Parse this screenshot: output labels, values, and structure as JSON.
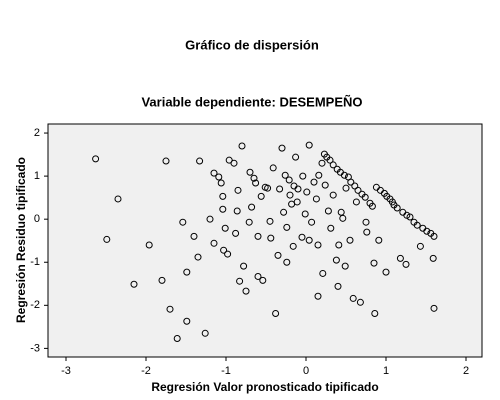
{
  "chart_data": {
    "type": "scatter",
    "title": "Gráfico de dispersión",
    "subtitle": "Variable dependiente: DESEMPEÑO",
    "x_label": "Regresión Valor pronosticado tipificado",
    "y_label": "Regresión Residuo tipificado",
    "xlim": [
      -3.225,
      2.2
    ],
    "ylim": [
      -3.2,
      2.21
    ],
    "xticks": [
      -3,
      -2,
      -1,
      0,
      1,
      2
    ],
    "yticks": [
      -3,
      -2,
      -1,
      0,
      1,
      2
    ],
    "grid": false,
    "color": "#000000",
    "background": "#f0f0f0",
    "x": [
      -2.63,
      -2.35,
      -2.49,
      -2.15,
      -1.96,
      -1.75,
      -1.8,
      -1.7,
      -1.61,
      -1.54,
      -1.49,
      -1.49,
      -1.4,
      -1.35,
      -1.33,
      -1.26,
      -1.2,
      -1.15,
      -1.15,
      -1.09,
      -1.06,
      -1.04,
      -1.04,
      -1.01,
      -1.03,
      -0.98,
      -0.96,
      -0.9,
      -0.86,
      -0.88,
      -0.85,
      -0.83,
      -0.8,
      -0.78,
      -0.75,
      -0.71,
      -0.7,
      -0.68,
      -0.65,
      -0.63,
      -0.6,
      -0.6,
      -0.56,
      -0.54,
      -0.51,
      -0.48,
      -0.45,
      -0.44,
      -0.41,
      -0.38,
      -0.35,
      -0.33,
      -0.3,
      -0.28,
      -0.26,
      -0.24,
      -0.24,
      -0.21,
      -0.2,
      -0.18,
      -0.16,
      -0.15,
      -0.13,
      -0.11,
      -0.1,
      -0.05,
      -0.04,
      -0.01,
      0.01,
      0.04,
      0.04,
      0.07,
      0.1,
      0.13,
      0.15,
      0.15,
      0.16,
      0.2,
      0.21,
      0.23,
      0.24,
      0.26,
      0.28,
      0.3,
      0.31,
      0.34,
      0.34,
      0.38,
      0.39,
      0.4,
      0.41,
      0.43,
      0.44,
      0.46,
      0.48,
      0.49,
      0.5,
      0.53,
      0.55,
      0.56,
      0.59,
      0.61,
      0.63,
      0.65,
      0.68,
      0.7,
      0.74,
      0.75,
      0.76,
      0.8,
      0.83,
      0.85,
      0.86,
      0.88,
      0.91,
      0.93,
      0.98,
      1.0,
      1.01,
      1.05,
      1.08,
      1.1,
      1.14,
      1.18,
      1.21,
      1.25,
      1.26,
      1.3,
      1.35,
      1.39,
      1.43,
      1.46,
      1.51,
      1.56,
      1.6,
      1.59,
      1.6
    ],
    "values": [
      1.4,
      0.47,
      -0.47,
      -1.51,
      -0.6,
      1.35,
      -1.42,
      -2.09,
      -2.77,
      -0.07,
      -2.37,
      -1.23,
      -0.4,
      -0.88,
      1.35,
      -2.65,
      0.0,
      -0.56,
      1.07,
      0.98,
      0.84,
      0.53,
      0.23,
      -0.21,
      -0.72,
      -0.81,
      1.37,
      1.3,
      0.19,
      -0.33,
      0.67,
      -1.44,
      1.7,
      -1.09,
      -1.67,
      -0.07,
      1.09,
      0.28,
      0.95,
      0.84,
      -0.4,
      -1.33,
      0.53,
      -1.42,
      0.74,
      0.72,
      -0.05,
      -0.44,
      1.19,
      -2.19,
      -0.84,
      0.7,
      1.65,
      0.16,
      1.02,
      -0.19,
      -1.0,
      0.91,
      0.56,
      0.35,
      -0.63,
      0.77,
      1.44,
      0.4,
      0.7,
      -0.42,
      1.0,
      0.12,
      0.63,
      1.72,
      -0.49,
      -0.07,
      0.86,
      0.47,
      -0.6,
      -1.79,
      1.02,
      1.3,
      -1.26,
      1.51,
      0.79,
      1.44,
      0.19,
      1.37,
      -0.21,
      1.26,
      0.56,
      -0.95,
      1.16,
      -1.56,
      -0.6,
      1.09,
      0.16,
      0.02,
      1.02,
      -1.09,
      0.72,
      0.98,
      -0.49,
      0.86,
      -1.84,
      0.77,
      0.4,
      0.67,
      -1.93,
      0.58,
      0.51,
      -0.07,
      -0.3,
      0.37,
      0.3,
      -1.02,
      -2.19,
      0.74,
      -0.49,
      0.67,
      0.6,
      -1.23,
      0.53,
      0.47,
      0.4,
      0.33,
      0.26,
      -0.91,
      0.16,
      -1.05,
      0.09,
      0.05,
      -0.07,
      -0.14,
      -0.63,
      -0.21,
      -0.28,
      -0.33,
      -0.4,
      -0.91,
      -2.07
    ]
  }
}
